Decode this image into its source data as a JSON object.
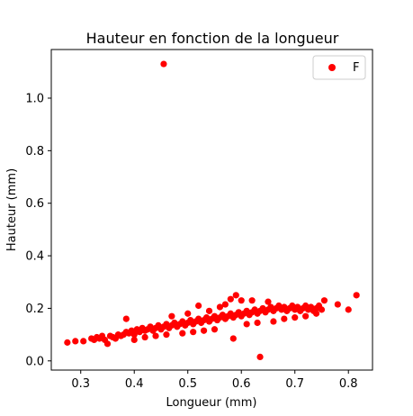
{
  "chart_data": {
    "type": "scatter",
    "title": "Hauteur en fonction de la longueur",
    "xlabel": "Longueur (mm)",
    "ylabel": "Hauteur (mm)",
    "xlim": [
      0.245,
      0.845
    ],
    "ylim": [
      -0.035,
      1.185
    ],
    "xticks": [
      0.3,
      0.4,
      0.5,
      0.6,
      0.7,
      0.8
    ],
    "yticks": [
      0.0,
      0.2,
      0.4,
      0.6,
      0.8,
      1.0
    ],
    "xtick_labels": [
      "0.3",
      "0.4",
      "0.5",
      "0.6",
      "0.7",
      "0.8"
    ],
    "ytick_labels": [
      "0.0",
      "0.2",
      "0.4",
      "0.6",
      "0.8",
      "1.0"
    ],
    "grid": false,
    "legend": {
      "position": "top-right",
      "entries": [
        "F"
      ]
    },
    "series": [
      {
        "name": "F",
        "color": "#ff0000",
        "points": [
          [
            0.275,
            0.07
          ],
          [
            0.29,
            0.075
          ],
          [
            0.305,
            0.075
          ],
          [
            0.32,
            0.085
          ],
          [
            0.325,
            0.08
          ],
          [
            0.33,
            0.09
          ],
          [
            0.335,
            0.085
          ],
          [
            0.34,
            0.095
          ],
          [
            0.345,
            0.08
          ],
          [
            0.35,
            0.065
          ],
          [
            0.355,
            0.095
          ],
          [
            0.36,
            0.09
          ],
          [
            0.365,
            0.085
          ],
          [
            0.37,
            0.1
          ],
          [
            0.375,
            0.095
          ],
          [
            0.38,
            0.1
          ],
          [
            0.385,
            0.11
          ],
          [
            0.39,
            0.105
          ],
          [
            0.395,
            0.115
          ],
          [
            0.4,
            0.1
          ],
          [
            0.405,
            0.12
          ],
          [
            0.41,
            0.11
          ],
          [
            0.415,
            0.125
          ],
          [
            0.42,
            0.115
          ],
          [
            0.425,
            0.12
          ],
          [
            0.43,
            0.13
          ],
          [
            0.435,
            0.115
          ],
          [
            0.44,
            0.125
          ],
          [
            0.445,
            0.135
          ],
          [
            0.45,
            0.12
          ],
          [
            0.455,
            0.13
          ],
          [
            0.46,
            0.14
          ],
          [
            0.465,
            0.125
          ],
          [
            0.47,
            0.135
          ],
          [
            0.475,
            0.145
          ],
          [
            0.48,
            0.13
          ],
          [
            0.485,
            0.14
          ],
          [
            0.49,
            0.15
          ],
          [
            0.495,
            0.135
          ],
          [
            0.5,
            0.145
          ],
          [
            0.505,
            0.155
          ],
          [
            0.51,
            0.14
          ],
          [
            0.515,
            0.15
          ],
          [
            0.52,
            0.16
          ],
          [
            0.525,
            0.145
          ],
          [
            0.53,
            0.155
          ],
          [
            0.535,
            0.165
          ],
          [
            0.54,
            0.15
          ],
          [
            0.545,
            0.16
          ],
          [
            0.55,
            0.17
          ],
          [
            0.555,
            0.155
          ],
          [
            0.56,
            0.165
          ],
          [
            0.565,
            0.175
          ],
          [
            0.57,
            0.16
          ],
          [
            0.575,
            0.17
          ],
          [
            0.58,
            0.18
          ],
          [
            0.585,
            0.165
          ],
          [
            0.59,
            0.175
          ],
          [
            0.595,
            0.185
          ],
          [
            0.6,
            0.17
          ],
          [
            0.605,
            0.18
          ],
          [
            0.61,
            0.19
          ],
          [
            0.615,
            0.175
          ],
          [
            0.62,
            0.185
          ],
          [
            0.625,
            0.195
          ],
          [
            0.63,
            0.18
          ],
          [
            0.635,
            0.19
          ],
          [
            0.64,
            0.2
          ],
          [
            0.645,
            0.185
          ],
          [
            0.65,
            0.195
          ],
          [
            0.655,
            0.205
          ],
          [
            0.66,
            0.19
          ],
          [
            0.665,
            0.2
          ],
          [
            0.67,
            0.21
          ],
          [
            0.675,
            0.195
          ],
          [
            0.68,
            0.205
          ],
          [
            0.685,
            0.19
          ],
          [
            0.69,
            0.2
          ],
          [
            0.695,
            0.21
          ],
          [
            0.7,
            0.195
          ],
          [
            0.705,
            0.205
          ],
          [
            0.71,
            0.19
          ],
          [
            0.715,
            0.2
          ],
          [
            0.72,
            0.21
          ],
          [
            0.725,
            0.195
          ],
          [
            0.73,
            0.205
          ],
          [
            0.735,
            0.19
          ],
          [
            0.74,
            0.2
          ],
          [
            0.745,
            0.21
          ],
          [
            0.75,
            0.195
          ],
          [
            0.755,
            0.23
          ],
          [
            0.78,
            0.215
          ],
          [
            0.8,
            0.195
          ],
          [
            0.815,
            0.25
          ],
          [
            0.455,
            1.13
          ],
          [
            0.635,
            0.015
          ],
          [
            0.585,
            0.085
          ],
          [
            0.385,
            0.16
          ],
          [
            0.52,
            0.21
          ],
          [
            0.59,
            0.25
          ],
          [
            0.58,
            0.235
          ],
          [
            0.6,
            0.23
          ],
          [
            0.62,
            0.23
          ],
          [
            0.65,
            0.225
          ],
          [
            0.47,
            0.17
          ],
          [
            0.5,
            0.18
          ],
          [
            0.54,
            0.19
          ],
          [
            0.56,
            0.205
          ],
          [
            0.57,
            0.215
          ],
          [
            0.61,
            0.14
          ],
          [
            0.63,
            0.145
          ],
          [
            0.66,
            0.15
          ],
          [
            0.68,
            0.16
          ],
          [
            0.7,
            0.165
          ],
          [
            0.72,
            0.17
          ],
          [
            0.74,
            0.18
          ],
          [
            0.55,
            0.12
          ],
          [
            0.53,
            0.115
          ],
          [
            0.51,
            0.11
          ],
          [
            0.49,
            0.105
          ],
          [
            0.46,
            0.1
          ],
          [
            0.44,
            0.095
          ],
          [
            0.42,
            0.09
          ],
          [
            0.4,
            0.08
          ]
        ]
      }
    ]
  }
}
